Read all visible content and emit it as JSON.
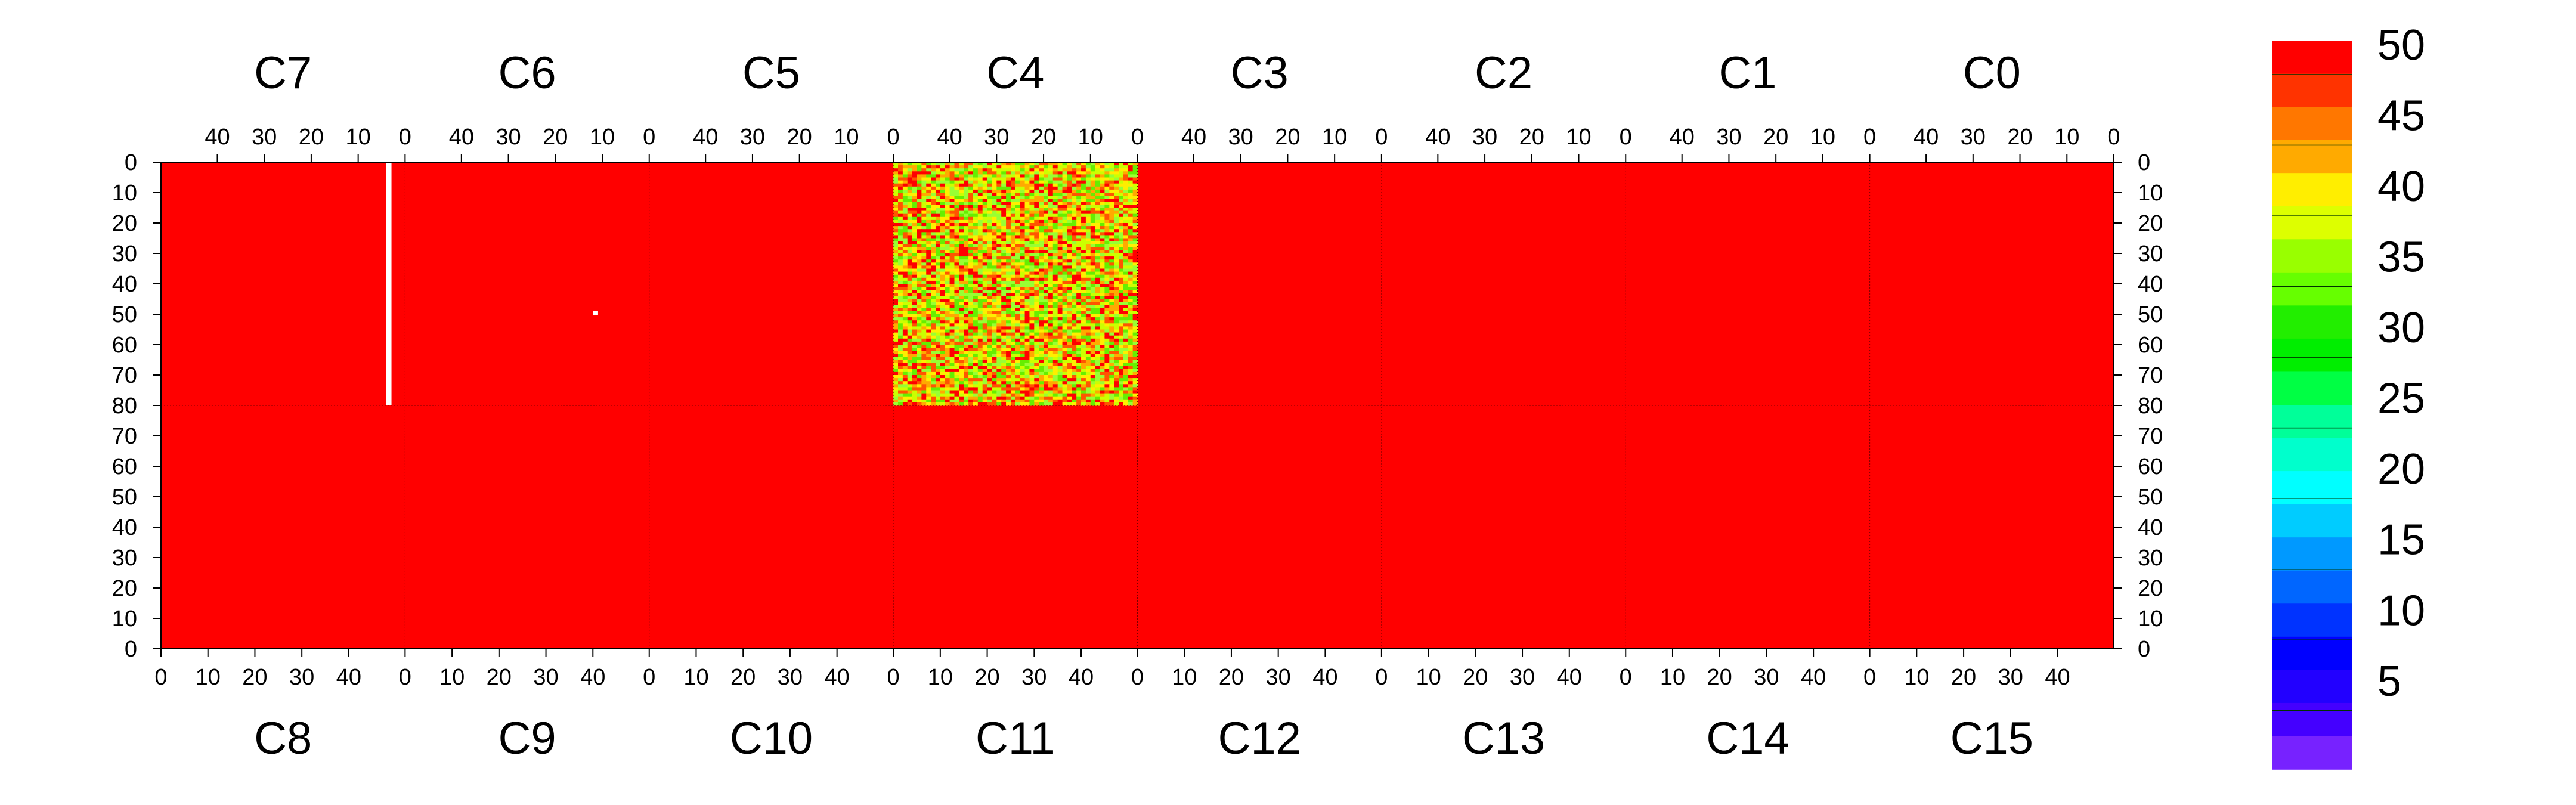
{
  "chart_data": {
    "type": "heatmap",
    "top_chips": [
      "C7",
      "C6",
      "C5",
      "C4",
      "C3",
      "C2",
      "C1",
      "C0"
    ],
    "bottom_chips": [
      "C8",
      "C9",
      "C10",
      "C11",
      "C12",
      "C13",
      "C14",
      "C15"
    ],
    "chip_columns": 52,
    "top_x_ticks": [
      "40",
      "30",
      "20",
      "10",
      "0"
    ],
    "bottom_x_ticks": [
      "0",
      "10",
      "20",
      "30",
      "40"
    ],
    "y_ticks_top": [
      "0",
      "10",
      "20",
      "30",
      "40",
      "50",
      "60",
      "70",
      "80"
    ],
    "y_ticks_bottom": [
      "70",
      "60",
      "50",
      "40",
      "30",
      "20",
      "10",
      "0"
    ],
    "rows_per_half": 80,
    "zlim": [
      0,
      50
    ],
    "colorbar_ticks": [
      "50",
      "45",
      "40",
      "35",
      "30",
      "25",
      "20",
      "15",
      "10",
      "5"
    ],
    "colorbar_colors": [
      "#ff0000",
      "#ff3300",
      "#ff7700",
      "#ffaa00",
      "#ffee00",
      "#ddff00",
      "#99ff00",
      "#66ff00",
      "#22ee00",
      "#00ee00",
      "#00ff44",
      "#00ff99",
      "#00ffcc",
      "#00ffff",
      "#00ccff",
      "#0099ff",
      "#0066ff",
      "#0033ff",
      "#0000ff",
      "#2200ff",
      "#4400ff",
      "#7722ff"
    ],
    "base_value": 50,
    "base_color": "#ff0000",
    "noisy_chip": "C4",
    "noisy_palette": [
      "#ff0000",
      "#ff5500",
      "#ffaa00",
      "#ffee00",
      "#ccff00",
      "#99ff33",
      "#66ee00"
    ],
    "dead_column": {
      "chip": "C7",
      "column": 3,
      "rows": [
        0,
        80
      ]
    },
    "dead_pixels": [
      {
        "chip": "C6",
        "column": 11,
        "row": 49
      }
    ],
    "grid": true
  }
}
